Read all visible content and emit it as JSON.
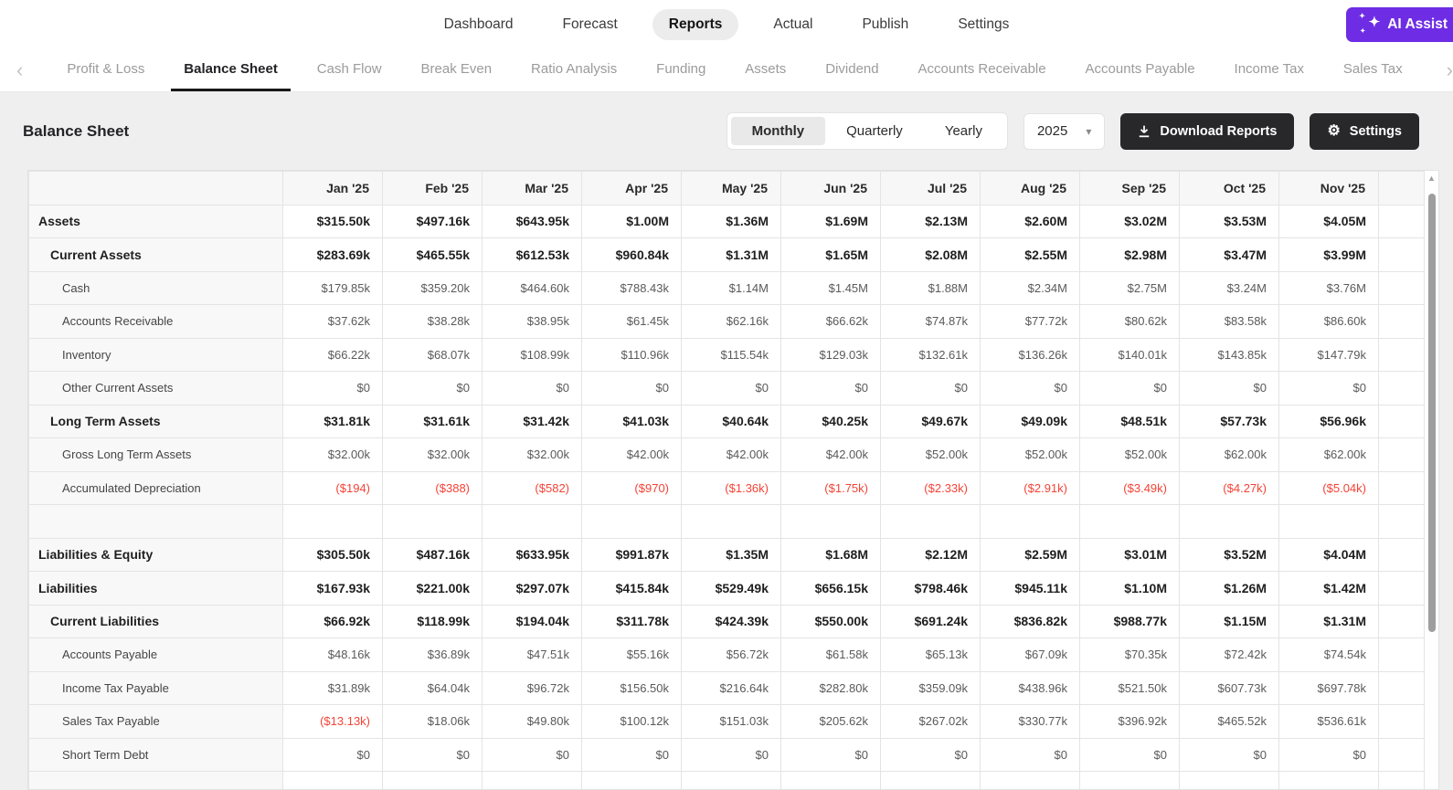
{
  "top_nav": {
    "items": [
      "Dashboard",
      "Forecast",
      "Reports",
      "Actual",
      "Publish",
      "Settings"
    ],
    "active": "Reports",
    "ai_assist_label": "AI Assist"
  },
  "report_tabs": {
    "items": [
      "Profit & Loss",
      "Balance Sheet",
      "Cash Flow",
      "Break Even",
      "Ratio Analysis",
      "Funding",
      "Assets",
      "Dividend",
      "Accounts Receivable",
      "Accounts Payable",
      "Income Tax",
      "Sales Tax"
    ],
    "active": "Balance Sheet"
  },
  "toolbar": {
    "title": "Balance Sheet",
    "period_options": [
      "Monthly",
      "Quarterly",
      "Yearly"
    ],
    "period_selected": "Monthly",
    "year": "2025",
    "download_label": "Download Reports",
    "settings_label": "Settings"
  },
  "colors": {
    "accent_purple": "#6e2de4",
    "dark_button": "#28282b",
    "negative_red": "#f44336",
    "active_pill": "#ececec"
  },
  "table": {
    "columns": [
      "Jan '25",
      "Feb '25",
      "Mar '25",
      "Apr '25",
      "May '25",
      "Jun '25",
      "Jul '25",
      "Aug '25",
      "Sep '25",
      "Oct '25",
      "Nov '25"
    ],
    "rows": [
      {
        "label": "Assets",
        "level": 0,
        "bold": true,
        "values": [
          "$315.50k",
          "$497.16k",
          "$643.95k",
          "$1.00M",
          "$1.36M",
          "$1.69M",
          "$2.13M",
          "$2.60M",
          "$3.02M",
          "$3.53M",
          "$4.05M"
        ]
      },
      {
        "label": "Current Assets",
        "level": 1,
        "bold": true,
        "values": [
          "$283.69k",
          "$465.55k",
          "$612.53k",
          "$960.84k",
          "$1.31M",
          "$1.65M",
          "$2.08M",
          "$2.55M",
          "$2.98M",
          "$3.47M",
          "$3.99M"
        ]
      },
      {
        "label": "Cash",
        "level": 2,
        "bold": false,
        "values": [
          "$179.85k",
          "$359.20k",
          "$464.60k",
          "$788.43k",
          "$1.14M",
          "$1.45M",
          "$1.88M",
          "$2.34M",
          "$2.75M",
          "$3.24M",
          "$3.76M"
        ]
      },
      {
        "label": "Accounts Receivable",
        "level": 2,
        "bold": false,
        "values": [
          "$37.62k",
          "$38.28k",
          "$38.95k",
          "$61.45k",
          "$62.16k",
          "$66.62k",
          "$74.87k",
          "$77.72k",
          "$80.62k",
          "$83.58k",
          "$86.60k"
        ]
      },
      {
        "label": "Inventory",
        "level": 2,
        "bold": false,
        "values": [
          "$66.22k",
          "$68.07k",
          "$108.99k",
          "$110.96k",
          "$115.54k",
          "$129.03k",
          "$132.61k",
          "$136.26k",
          "$140.01k",
          "$143.85k",
          "$147.79k"
        ]
      },
      {
        "label": "Other Current Assets",
        "level": 2,
        "bold": false,
        "values": [
          "$0",
          "$0",
          "$0",
          "$0",
          "$0",
          "$0",
          "$0",
          "$0",
          "$0",
          "$0",
          "$0"
        ]
      },
      {
        "label": "Long Term Assets",
        "level": 1,
        "bold": true,
        "values": [
          "$31.81k",
          "$31.61k",
          "$31.42k",
          "$41.03k",
          "$40.64k",
          "$40.25k",
          "$49.67k",
          "$49.09k",
          "$48.51k",
          "$57.73k",
          "$56.96k"
        ]
      },
      {
        "label": "Gross Long Term Assets",
        "level": 2,
        "bold": false,
        "values": [
          "$32.00k",
          "$32.00k",
          "$32.00k",
          "$42.00k",
          "$42.00k",
          "$42.00k",
          "$52.00k",
          "$52.00k",
          "$52.00k",
          "$62.00k",
          "$62.00k"
        ]
      },
      {
        "label": "Accumulated Depreciation",
        "level": 2,
        "bold": false,
        "values": [
          "($194)",
          "($388)",
          "($582)",
          "($970)",
          "($1.36k)",
          "($1.75k)",
          "($2.33k)",
          "($2.91k)",
          "($3.49k)",
          "($4.27k)",
          "($5.04k)"
        ]
      },
      {
        "label": "",
        "level": 0,
        "bold": false,
        "spacer": true,
        "values": [
          "",
          "",
          "",
          "",
          "",
          "",
          "",
          "",
          "",
          "",
          ""
        ]
      },
      {
        "label": "Liabilities & Equity",
        "level": 0,
        "bold": true,
        "values": [
          "$305.50k",
          "$487.16k",
          "$633.95k",
          "$991.87k",
          "$1.35M",
          "$1.68M",
          "$2.12M",
          "$2.59M",
          "$3.01M",
          "$3.52M",
          "$4.04M"
        ]
      },
      {
        "label": "Liabilities",
        "level": 0,
        "bold": true,
        "values": [
          "$167.93k",
          "$221.00k",
          "$297.07k",
          "$415.84k",
          "$529.49k",
          "$656.15k",
          "$798.46k",
          "$945.11k",
          "$1.10M",
          "$1.26M",
          "$1.42M"
        ]
      },
      {
        "label": "Current Liabilities",
        "level": 1,
        "bold": true,
        "values": [
          "$66.92k",
          "$118.99k",
          "$194.04k",
          "$311.78k",
          "$424.39k",
          "$550.00k",
          "$691.24k",
          "$836.82k",
          "$988.77k",
          "$1.15M",
          "$1.31M"
        ]
      },
      {
        "label": "Accounts Payable",
        "level": 2,
        "bold": false,
        "values": [
          "$48.16k",
          "$36.89k",
          "$47.51k",
          "$55.16k",
          "$56.72k",
          "$61.58k",
          "$65.13k",
          "$67.09k",
          "$70.35k",
          "$72.42k",
          "$74.54k"
        ]
      },
      {
        "label": "Income Tax Payable",
        "level": 2,
        "bold": false,
        "values": [
          "$31.89k",
          "$64.04k",
          "$96.72k",
          "$156.50k",
          "$216.64k",
          "$282.80k",
          "$359.09k",
          "$438.96k",
          "$521.50k",
          "$607.73k",
          "$697.78k"
        ]
      },
      {
        "label": "Sales Tax Payable",
        "level": 2,
        "bold": false,
        "values": [
          "($13.13k)",
          "$18.06k",
          "$49.80k",
          "$100.12k",
          "$151.03k",
          "$205.62k",
          "$267.02k",
          "$330.77k",
          "$396.92k",
          "$465.52k",
          "$536.61k"
        ]
      },
      {
        "label": "Short Term Debt",
        "level": 2,
        "bold": false,
        "values": [
          "$0",
          "$0",
          "$0",
          "$0",
          "$0",
          "$0",
          "$0",
          "$0",
          "$0",
          "$0",
          "$0"
        ]
      },
      {
        "label": "",
        "level": 0,
        "bold": false,
        "partial": true,
        "values": [
          "",
          "",
          "",
          "",
          "",
          "",
          "",
          "",
          "",
          "",
          ""
        ]
      }
    ]
  }
}
